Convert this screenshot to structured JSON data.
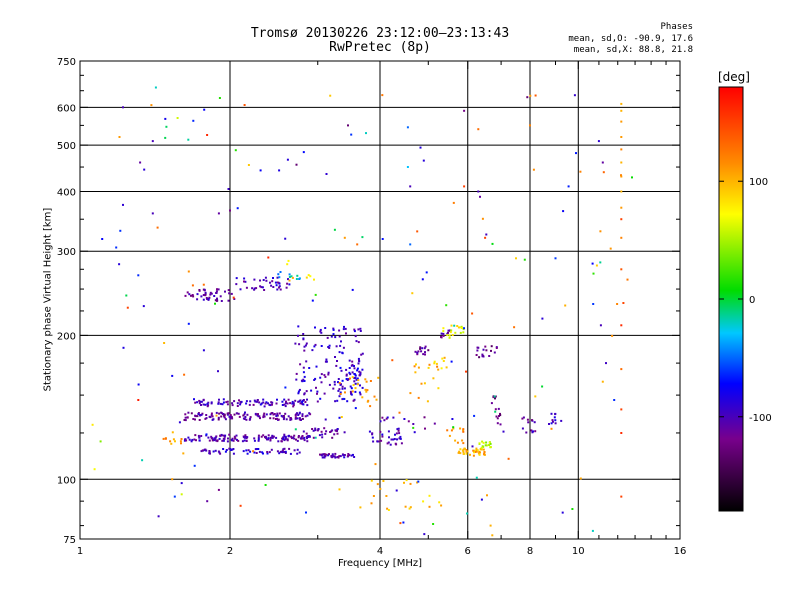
{
  "chart_data": {
    "type": "scatter",
    "title": "Tromsø 20130226 23:12:00–23:13:43",
    "subtitle": "RwPretec (8p)",
    "xlabel": "Frequency [MHz]",
    "ylabel": "Stationary phase Virtual Height [km]",
    "xscale": "log",
    "yscale": "log",
    "xlim": [
      1,
      16
    ],
    "ylim": [
      75,
      750
    ],
    "x_ticks": [
      1,
      2,
      4,
      6,
      8,
      10,
      16
    ],
    "y_ticks": [
      75,
      100,
      200,
      300,
      400,
      500,
      600,
      750
    ],
    "grid": true,
    "colorbar": {
      "label": "[deg]",
      "range": [
        -180,
        180
      ],
      "ticks": [
        -100,
        0,
        100
      ]
    },
    "stats": {
      "heading": "Phases",
      "line_o": "mean, sd,O: -90.9, 17.6",
      "line_x": "mean, sd,X:  88.8, 21.8"
    },
    "clusters": [
      {
        "x": [
          1.62,
          2.9
        ],
        "y": [
          120,
          124
        ],
        "phase": -105,
        "n": 140
      },
      {
        "x": [
          1.62,
          2.9
        ],
        "y": [
          133,
          138
        ],
        "phase": -110,
        "n": 130
      },
      {
        "x": [
          1.7,
          2.9
        ],
        "y": [
          142,
          147
        ],
        "phase": -100,
        "n": 90
      },
      {
        "x": [
          1.75,
          2.8
        ],
        "y": [
          113,
          116
        ],
        "phase": -95,
        "n": 60
      },
      {
        "x": [
          3.0,
          3.55
        ],
        "y": [
          111,
          113
        ],
        "phase": -105,
        "n": 40
      },
      {
        "x": [
          2.8,
          3.4
        ],
        "y": [
          122,
          128
        ],
        "phase": -110,
        "n": 30
      },
      {
        "x": [
          2.7,
          3.7
        ],
        "y": [
          145,
          210
        ],
        "phase": -95,
        "n": 130
      },
      {
        "x": [
          3.3,
          3.7
        ],
        "y": [
          150,
          175
        ],
        "phase": -90,
        "n": 40
      },
      {
        "x": [
          3.8,
          4.5
        ],
        "y": [
          118,
          126
        ],
        "phase": -100,
        "n": 30
      },
      {
        "x": [
          4.7,
          5.0
        ],
        "y": [
          182,
          190
        ],
        "phase": -115,
        "n": 14
      },
      {
        "x": [
          5.3,
          5.6
        ],
        "y": [
          198,
          205
        ],
        "phase": -110,
        "n": 10
      },
      {
        "x": [
          6.2,
          6.9
        ],
        "y": [
          180,
          190
        ],
        "phase": -120,
        "n": 18
      },
      {
        "x": [
          6.7,
          7.0
        ],
        "y": [
          130,
          150
        ],
        "phase": -125,
        "n": 14
      },
      {
        "x": [
          7.7,
          8.2
        ],
        "y": [
          125,
          135
        ],
        "phase": -105,
        "n": 14
      },
      {
        "x": [
          8.7,
          9.1
        ],
        "y": [
          130,
          138
        ],
        "phase": -100,
        "n": 10
      },
      {
        "x": [
          4.0,
          5.2
        ],
        "y": [
          125,
          135
        ],
        "phase": -105,
        "n": 16
      },
      {
        "x": [
          5.7,
          6.5
        ],
        "y": [
          112,
          116
        ],
        "phase": 100,
        "n": 40
      },
      {
        "x": [
          6.3,
          6.7
        ],
        "y": [
          116,
          120
        ],
        "phase": 55,
        "n": 16
      },
      {
        "x": [
          5.3,
          5.9
        ],
        "y": [
          195,
          210
        ],
        "phase": 70,
        "n": 18
      },
      {
        "x": [
          5.1,
          5.5
        ],
        "y": [
          170,
          180
        ],
        "phase": 90,
        "n": 8
      },
      {
        "x": [
          3.3,
          4.0
        ],
        "y": [
          145,
          165
        ],
        "phase": 105,
        "n": 22
      },
      {
        "x": [
          4.6,
          5.3
        ],
        "y": [
          145,
          175
        ],
        "phase": 105,
        "n": 14
      },
      {
        "x": [
          5.4,
          5.9
        ],
        "y": [
          118,
          128
        ],
        "phase": 120,
        "n": 12
      },
      {
        "x": [
          1.45,
          1.6
        ],
        "y": [
          118,
          122
        ],
        "phase": 110,
        "n": 10
      },
      {
        "x": [
          1.62,
          2.05
        ],
        "y": [
          236,
          250
        ],
        "phase": -110,
        "n": 45
      },
      {
        "x": [
          2.05,
          2.65
        ],
        "y": [
          248,
          265
        ],
        "phase": -100,
        "n": 40
      },
      {
        "x": [
          2.5,
          2.8
        ],
        "y": [
          262,
          272
        ],
        "phase": -30,
        "n": 10
      },
      {
        "x": [
          2.6,
          2.95
        ],
        "y": [
          255,
          290
        ],
        "phase": 90,
        "n": 8
      },
      {
        "x": [
          3.6,
          5.5
        ],
        "y": [
          85,
          100
        ],
        "phase": 95,
        "n": 22
      },
      {
        "x": [
          1.1,
          13
        ],
        "y": [
          76,
          640
        ],
        "phase": -80,
        "n": 70
      },
      {
        "x": [
          1.1,
          13
        ],
        "y": [
          76,
          640
        ],
        "phase": 110,
        "n": 40
      },
      {
        "x": [
          1.1,
          13
        ],
        "y": [
          76,
          640
        ],
        "phase": 0,
        "n": 30
      },
      {
        "x": [
          1.1,
          13
        ],
        "y": [
          76,
          640
        ],
        "phase": 150,
        "n": 14
      }
    ],
    "points": [
      {
        "x": 12.2,
        "y": 610,
        "phase": 100
      },
      {
        "x": 12.2,
        "y": 590,
        "phase": 100
      },
      {
        "x": 12.2,
        "y": 560,
        "phase": 110
      },
      {
        "x": 12.2,
        "y": 520,
        "phase": 110
      },
      {
        "x": 12.2,
        "y": 490,
        "phase": 120
      },
      {
        "x": 12.2,
        "y": 460,
        "phase": 100
      },
      {
        "x": 12.2,
        "y": 430,
        "phase": 110
      },
      {
        "x": 12.2,
        "y": 400,
        "phase": 100
      },
      {
        "x": 12.2,
        "y": 370,
        "phase": 110
      },
      {
        "x": 12.2,
        "y": 350,
        "phase": 150
      },
      {
        "x": 12.2,
        "y": 320,
        "phase": 120
      },
      {
        "x": 12.2,
        "y": 275,
        "phase": 140
      },
      {
        "x": 12.2,
        "y": 210,
        "phase": 160
      },
      {
        "x": 12.2,
        "y": 170,
        "phase": 130
      },
      {
        "x": 12.2,
        "y": 140,
        "phase": 150
      },
      {
        "x": 12.2,
        "y": 125,
        "phase": 160
      },
      {
        "x": 12.2,
        "y": 92,
        "phase": 150
      },
      {
        "x": 11.1,
        "y": 210,
        "phase": -100
      },
      {
        "x": 11.2,
        "y": 460,
        "phase": -110
      },
      {
        "x": 11.0,
        "y": 510,
        "phase": -90
      },
      {
        "x": 10.9,
        "y": 280,
        "phase": 90
      },
      {
        "x": 11.2,
        "y": 160,
        "phase": 100
      },
      {
        "x": 10.7,
        "y": 78,
        "phase": -20
      },
      {
        "x": 10.1,
        "y": 440,
        "phase": 120
      },
      {
        "x": 1.22,
        "y": 600,
        "phase": -100
      },
      {
        "x": 1.32,
        "y": 460,
        "phase": -110
      },
      {
        "x": 1.4,
        "y": 510,
        "phase": -100
      },
      {
        "x": 1.42,
        "y": 660,
        "phase": -20
      },
      {
        "x": 1.57,
        "y": 570,
        "phase": 60
      },
      {
        "x": 1.2,
        "y": 520,
        "phase": 110
      },
      {
        "x": 1.22,
        "y": 375,
        "phase": -90
      },
      {
        "x": 1.4,
        "y": 360,
        "phase": -100
      },
      {
        "x": 1.9,
        "y": 360,
        "phase": -110
      },
      {
        "x": 2.0,
        "y": 365,
        "phase": -120
      },
      {
        "x": 2.72,
        "y": 455,
        "phase": -130
      },
      {
        "x": 3.45,
        "y": 550,
        "phase": -130
      },
      {
        "x": 3.75,
        "y": 530,
        "phase": -20
      },
      {
        "x": 4.55,
        "y": 545,
        "phase": -50
      },
      {
        "x": 5.9,
        "y": 590,
        "phase": -120
      },
      {
        "x": 6.3,
        "y": 540,
        "phase": 130
      },
      {
        "x": 7.9,
        "y": 630,
        "phase": -130
      },
      {
        "x": 8.0,
        "y": 550,
        "phase": 120
      },
      {
        "x": 4.55,
        "y": 450,
        "phase": -30
      },
      {
        "x": 4.6,
        "y": 410,
        "phase": -100
      },
      {
        "x": 5.9,
        "y": 410,
        "phase": 150
      },
      {
        "x": 6.3,
        "y": 400,
        "phase": -100
      },
      {
        "x": 6.35,
        "y": 390,
        "phase": -110
      },
      {
        "x": 4.75,
        "y": 330,
        "phase": 140
      },
      {
        "x": 4.6,
        "y": 310,
        "phase": -50
      },
      {
        "x": 3.4,
        "y": 320,
        "phase": 110
      },
      {
        "x": 3.6,
        "y": 310,
        "phase": 130
      },
      {
        "x": 6.5,
        "y": 320,
        "phase": 150
      },
      {
        "x": 7.5,
        "y": 290,
        "phase": 90
      },
      {
        "x": 9.0,
        "y": 290,
        "phase": -60
      },
      {
        "x": 1.9,
        "y": 95,
        "phase": -120
      },
      {
        "x": 1.8,
        "y": 90,
        "phase": -110
      },
      {
        "x": 1.55,
        "y": 92,
        "phase": -60
      },
      {
        "x": 1.6,
        "y": 93,
        "phase": 60
      },
      {
        "x": 2.1,
        "y": 88,
        "phase": 150
      },
      {
        "x": 1.07,
        "y": 105,
        "phase": 70
      },
      {
        "x": 1.06,
        "y": 130,
        "phase": 80
      },
      {
        "x": 1.1,
        "y": 120,
        "phase": 40
      }
    ]
  }
}
